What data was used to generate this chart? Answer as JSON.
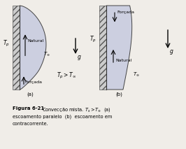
{
  "bg_color": "#f0ede8",
  "hatch_color": "#888888",
  "bl_fill": "#c8cce0",
  "bl_edge": "#333333",
  "wall_fill": "#cccccc",
  "wall_edge": "#555555",
  "figure_title": "Figura 6-21",
  "caption1": " Convecção mista. $T_s > T_\\infty$  (a)",
  "caption2": "escoamento paralelo  (b)  escoamento em",
  "caption3": "contracorrente.",
  "label_a": "(a)",
  "label_b": "(b)",
  "label_natural_a": "Natural",
  "label_forced_a": "Forçada",
  "label_natural_b": "Natural",
  "label_forced_b": "Forçada",
  "label_Tp_a": "$T_p$",
  "label_Tp_b": "$T_p$",
  "label_Tinf_a": "$T_\\infty$",
  "label_Tinf_b": "$T_\\infty$",
  "label_condition": "$T_p > T_\\infty$",
  "label_g": "g"
}
